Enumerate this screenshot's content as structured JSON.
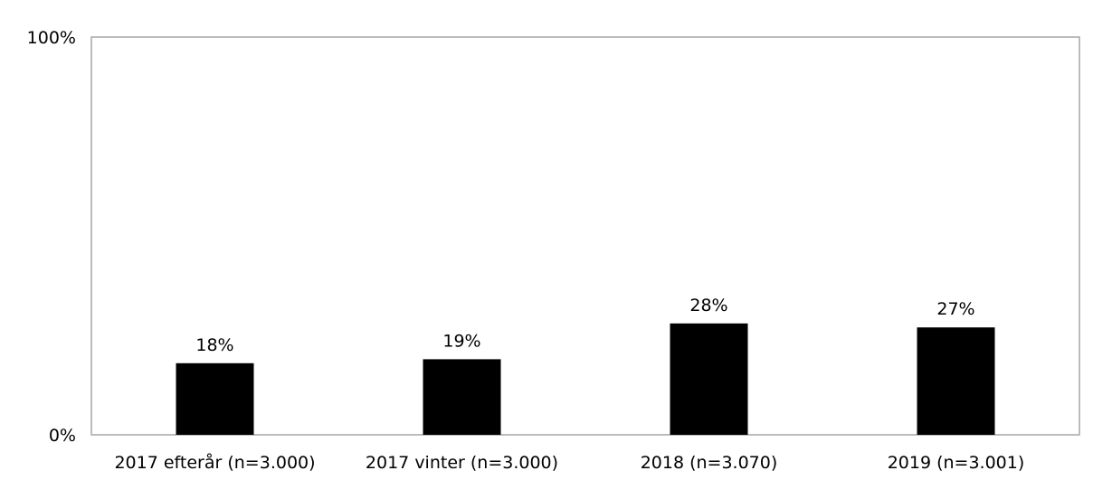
{
  "chart_data": {
    "type": "bar",
    "categories": [
      "2017 efterår (n=3.000)",
      "2017 vinter (n=3.000)",
      "2018 (n=3.070)",
      "2019 (n=3.001)"
    ],
    "values": [
      18,
      19,
      28,
      27
    ],
    "data_labels": [
      "18%",
      "19%",
      "28%",
      "27%"
    ],
    "y_ticks": [
      "0%",
      "100%"
    ],
    "ylim": [
      0,
      100
    ],
    "grid": false,
    "legend": "none",
    "bar_color": "#000000",
    "frame_color": "#a6a6a6"
  }
}
